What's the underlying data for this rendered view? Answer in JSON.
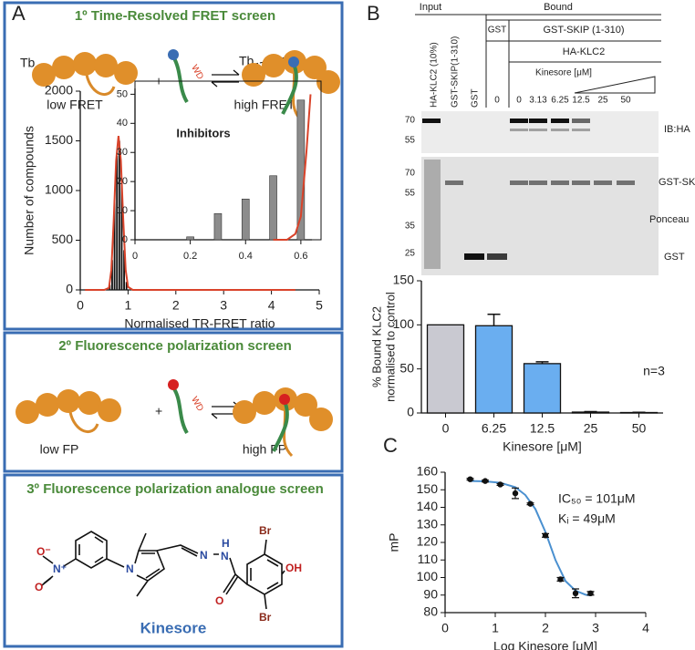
{
  "panel_labels": [
    "A",
    "B",
    "C"
  ],
  "screens": [
    {
      "title": "1º Time-Resolved FRET screen",
      "labels": [
        "Tb",
        "+",
        "WD",
        "Tb",
        "low FRET",
        "high FRET"
      ]
    },
    {
      "title": "2º Fluorescence polarization screen",
      "labels": [
        "+",
        "WD",
        "low FP",
        "high FP"
      ]
    },
    {
      "title": "3º Fluorescence polarization analogue screen",
      "atoms": [
        "O⁻",
        "N⁺",
        "O",
        "N",
        "N",
        "N",
        "H",
        "O",
        "Br",
        "OH",
        "Br"
      ],
      "compound": "Kinesore"
    }
  ],
  "blot": {
    "groups": [
      "Input",
      "Bound"
    ],
    "input_lanes": [
      "HA-KLC2 (10%)",
      "GST-SKIP(1-310)",
      "GST"
    ],
    "bound_header": [
      "GST",
      "GST-SKIP (1-310)",
      "HA-KLC2",
      "Kinesore [μM]"
    ],
    "bound_lanes": [
      "0",
      "0",
      "3.13",
      "6.25",
      "12.5",
      "25",
      "50"
    ],
    "markers_top": [
      "70",
      "55"
    ],
    "markers_bottom": [
      "70",
      "55",
      "35",
      "25"
    ],
    "side_labels": [
      "IB:HA",
      "GST-SKIP",
      "Ponceau",
      "GST"
    ]
  },
  "chart_data": [
    {
      "type": "histogram",
      "xlabel": "Normalised TR-FRET ratio",
      "ylabel": "Number of compounds",
      "bins": [
        0.6,
        0.65,
        0.7,
        0.75,
        0.8,
        0.85,
        0.9,
        0.95,
        1.0
      ],
      "values": [
        50,
        300,
        900,
        1350,
        1500,
        1100,
        400,
        80
      ],
      "color": "#111111",
      "fit_line": {
        "color": "#d9432a",
        "x": [
          0.1,
          0.5,
          0.6,
          0.65,
          0.7,
          0.75,
          0.8,
          0.85,
          0.9,
          0.95,
          1.0,
          1.1,
          1.5,
          4.5
        ],
        "values": [
          0,
          0,
          20,
          200,
          700,
          1300,
          1550,
          1300,
          700,
          200,
          30,
          0,
          0,
          0
        ]
      },
      "xlim": [
        0,
        5
      ],
      "xticks": [
        0,
        1,
        2,
        3,
        4,
        5
      ],
      "ylim": [
        0,
        2000
      ],
      "yticks": [
        0,
        500,
        1000,
        1500,
        2000
      ]
    },
    {
      "type": "bar",
      "title": "Inhibitors",
      "x": [
        0.2,
        0.3,
        0.4,
        0.5,
        0.6
      ],
      "values": [
        1,
        9,
        14,
        22,
        48
      ],
      "color": "#8c8c8c",
      "fit_line": {
        "color": "#d9432a",
        "x": [
          0.5,
          0.55,
          0.58,
          0.6,
          0.62,
          0.635
        ],
        "values": [
          0,
          0,
          2,
          8,
          30,
          50
        ]
      },
      "xlim": [
        0,
        0.64
      ],
      "xticks": [
        0,
        0.2,
        0.4,
        0.6
      ],
      "ylim": [
        0,
        52
      ],
      "yticks": [
        0,
        10,
        20,
        30,
        40,
        50
      ]
    },
    {
      "type": "bar",
      "categories": [
        "0",
        "6.25",
        "12.5",
        "25",
        "50"
      ],
      "values": [
        100,
        99,
        56,
        1,
        0.5
      ],
      "errors": [
        0,
        13,
        2,
        0.5,
        0.3
      ],
      "colors": [
        "#c9c9d1",
        "#6aaef0",
        "#6aaef0",
        "#6aaef0",
        "#6aaef0"
      ],
      "ylim": [
        0,
        150
      ],
      "yticks": [
        0,
        50,
        100,
        150
      ],
      "ylabel": [
        "% Bound KLC2",
        "normalised to control"
      ],
      "xlabel": "Kinesore [μM]",
      "annotation": "n=3"
    },
    {
      "type": "scatter",
      "x": [
        0.5,
        0.8,
        1.1,
        1.4,
        1.7,
        2.0,
        2.3,
        2.6,
        2.9
      ],
      "values": [
        156,
        155,
        153,
        148,
        142,
        124,
        99,
        91,
        91
      ],
      "errors": [
        0.5,
        0.5,
        0.5,
        3,
        0.5,
        1,
        1,
        2.5,
        1
      ],
      "color": "#111111",
      "fit_line": {
        "color": "#4a90d0",
        "x": [
          0.5,
          0.8,
          1.1,
          1.4,
          1.6,
          1.8,
          2.0,
          2.2,
          2.4,
          2.6,
          2.8,
          2.9
        ],
        "values": [
          155,
          154.8,
          154,
          151.5,
          147,
          139,
          126,
          110,
          98,
          92.5,
          90.2,
          89.8
        ]
      },
      "xlim": [
        0,
        4
      ],
      "xticks": [
        0,
        1,
        2,
        3,
        4
      ],
      "ylim": [
        80,
        160
      ],
      "yticks": [
        80,
        90,
        100,
        110,
        120,
        130,
        140,
        150,
        160
      ],
      "xlabel": "Log Kinesore [μM]",
      "ylabel": "mP",
      "annotations": [
        "IC₅₀ = 101μM",
        "Kᵢ = 49μM"
      ]
    }
  ]
}
